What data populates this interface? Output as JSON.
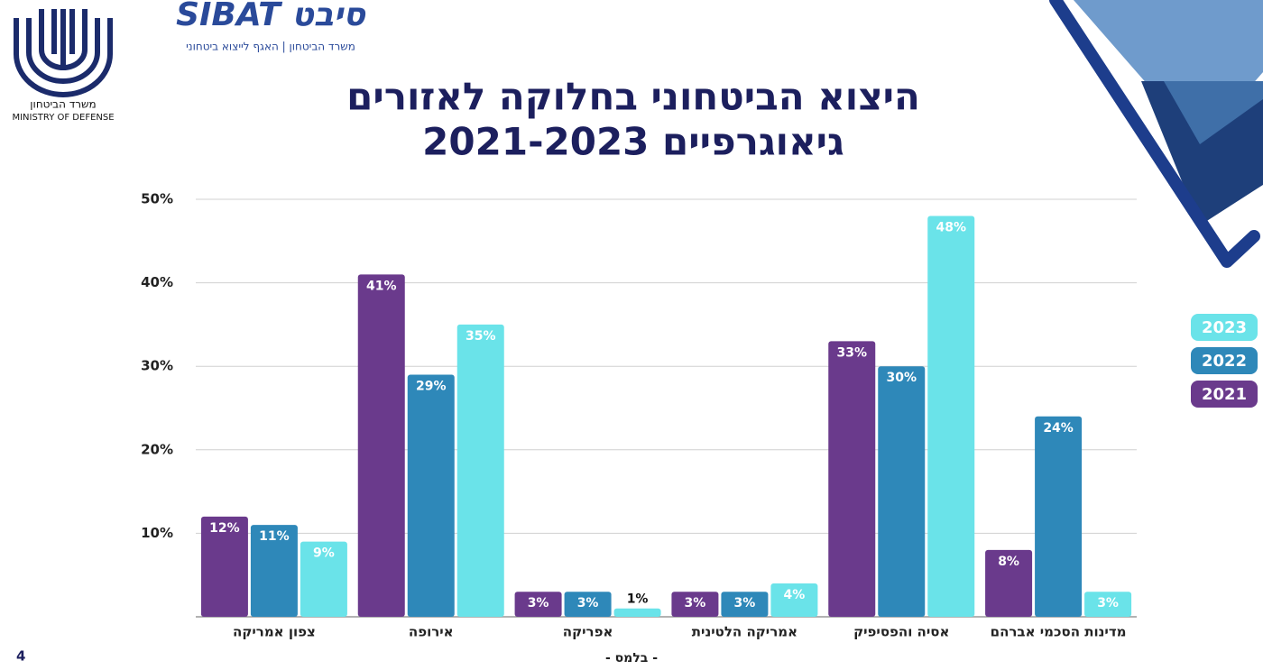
{
  "logo": {
    "hebrew": "משרד הביטחון",
    "english": "MINISTRY OF DEFENSE"
  },
  "sibat": {
    "name": "SIBAT סיבט",
    "subtitle": "משרד הביטחון | האגף לייצוא ביטחוני"
  },
  "page_number": "4",
  "classification": "- בלמס -",
  "chart_data": {
    "type": "bar",
    "title": [
      "היצוא הביטחוני בחלוקה לאזורים",
      "גיאוגרפיים 2021-2023"
    ],
    "categories": [
      "צפון אמריקה",
      "אירופה",
      "אפריקה",
      "אמריקה הלטינית",
      "אסיה והפסיפיק",
      "מדינות הסכמי אברהם"
    ],
    "series": [
      {
        "name": "2021",
        "color": "#6a3a8c",
        "values": [
          12,
          41,
          3,
          3,
          33,
          8
        ],
        "value_labels": [
          "12%",
          "41%",
          "3%",
          "3%",
          "33%",
          "8%"
        ]
      },
      {
        "name": "2022",
        "color": "#2e88b9",
        "values": [
          11,
          29,
          3,
          3,
          30,
          24
        ],
        "value_labels": [
          "11%",
          "29%",
          "3%",
          "3%",
          "30%",
          "24%"
        ]
      },
      {
        "name": "2023",
        "color": "#6ae3e9",
        "values": [
          9,
          35,
          1,
          4,
          48,
          3
        ],
        "value_labels": [
          "9%",
          "35%",
          "1%",
          "4%",
          "48%",
          "3%"
        ]
      }
    ],
    "ylim": [
      0,
      50
    ],
    "yticks": [
      {
        "value": 10,
        "label": "10%"
      },
      {
        "value": 20,
        "label": "20%"
      },
      {
        "value": 30,
        "label": "30%"
      },
      {
        "value": 40,
        "label": "40%"
      },
      {
        "value": 50,
        "label": "50%"
      }
    ],
    "grid": true,
    "legend": "right"
  }
}
